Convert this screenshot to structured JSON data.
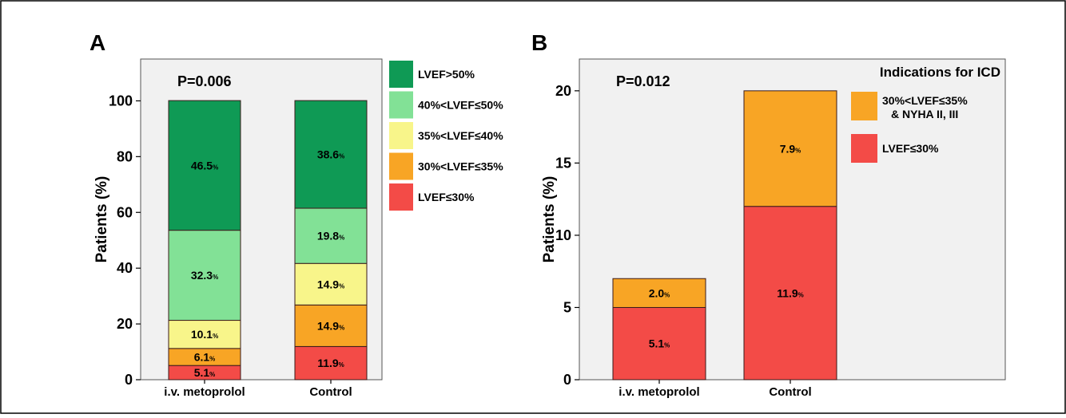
{
  "colors": {
    "LVEF>50%": "#0f9a55",
    "40%<LVEF≤50%": "#82e196",
    "35%<LVEF≤40%": "#f8f58a",
    "30%<LVEF≤35%": "#f8a525",
    "LVEF≤30%": "#f34b47",
    "plot_bg": "#f1f1f1"
  },
  "chart_data": [
    {
      "panel": "A",
      "type": "bar",
      "stacked": true,
      "annotation": "P=0.006",
      "categories": [
        "i.v. metoprolol",
        "Control"
      ],
      "ylabel": "Patients (%)",
      "ylim": [
        0,
        115
      ],
      "yticks": [
        0,
        20,
        40,
        60,
        80,
        100
      ],
      "series": [
        {
          "name": "LVEF≤30%",
          "values": [
            5.1,
            11.9
          ],
          "labels": [
            "5.1",
            "11.9"
          ]
        },
        {
          "name": "30%<LVEF≤35%",
          "values": [
            6.1,
            14.9
          ],
          "labels": [
            "6.1",
            "14.9"
          ]
        },
        {
          "name": "35%<LVEF≤40%",
          "values": [
            10.1,
            14.9
          ],
          "labels": [
            "10.1",
            "14.9"
          ]
        },
        {
          "name": "40%<LVEF≤50%",
          "values": [
            32.3,
            19.8
          ],
          "labels": [
            "32.3",
            "19.8"
          ]
        },
        {
          "name": "LVEF>50%",
          "values": [
            46.5,
            38.6
          ],
          "labels": [
            "46.5",
            "38.6"
          ]
        }
      ],
      "legend": {
        "title": "",
        "entries": [
          "LVEF>50%",
          "40%<LVEF≤50%",
          "35%<LVEF≤40%",
          "30%<LVEF≤35%",
          "LVEF≤30%"
        ],
        "position": "right"
      }
    },
    {
      "panel": "B",
      "type": "bar",
      "stacked": true,
      "annotation": "P=0.012",
      "categories": [
        "i.v. metoprolol",
        "Control"
      ],
      "ylabel": "Patients (%)",
      "ylim": [
        0,
        22.2
      ],
      "yticks": [
        0,
        5,
        10,
        15,
        20
      ],
      "series": [
        {
          "name": "LVEF≤30%",
          "values": [
            5.0,
            12.0
          ],
          "labels": [
            "5.1",
            "11.9"
          ]
        },
        {
          "name": "30%<LVEF≤35% & NYHA II, III",
          "values": [
            2.0,
            8.0
          ],
          "labels": [
            "2.0",
            "7.9"
          ]
        }
      ],
      "legend": {
        "title": "Indications for ICD",
        "entries": [
          "30%<LVEF≤35%",
          "& NYHA II, III",
          "LVEF≤30%"
        ],
        "position": "top-right"
      }
    }
  ]
}
